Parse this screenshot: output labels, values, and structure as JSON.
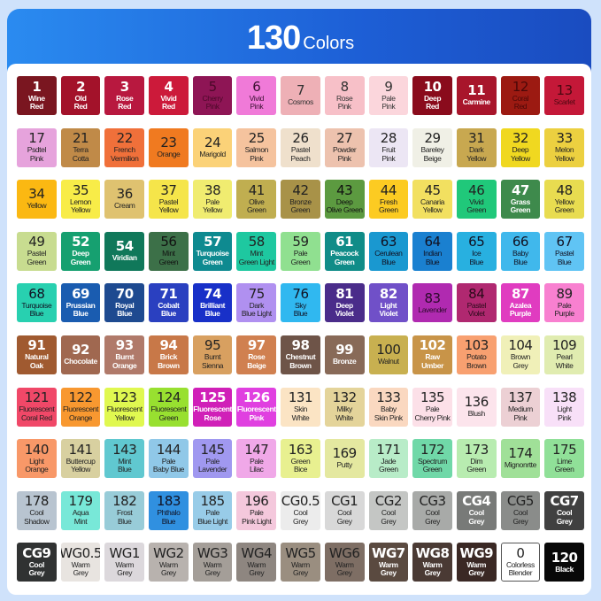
{
  "title": {
    "number": "130",
    "word": "Colors"
  },
  "swatches": [
    [
      "1",
      "Wine\nRed",
      "#7a1620",
      "#fff"
    ],
    [
      "2",
      "Old\nRed",
      "#a3122a",
      "#fff"
    ],
    [
      "3",
      "Rose\nRed",
      "#b8183f",
      "#fff"
    ],
    [
      "4",
      "Vivid\nRed",
      "#cc1a3a",
      "#fff"
    ],
    [
      "5",
      "Cherry\nPink",
      "#8e1555",
      "#4a0828"
    ],
    [
      "6",
      "Vivid\nPink",
      "#f07ad8",
      "#3a1030"
    ],
    [
      "7",
      "Cosmos",
      "#eeb0b6",
      "#333"
    ],
    [
      "8",
      "Rose\nPink",
      "#f7c0c8",
      "#333"
    ],
    [
      "9",
      "Pale\nPink",
      "#fbd6dc",
      "#333"
    ],
    [
      "10",
      "Deep\nRed",
      "#8a0b1c",
      "#fff"
    ],
    [
      "11",
      "Carmine",
      "#a8152b",
      "#fff"
    ],
    [
      "12",
      "Coral\nRed",
      "#9c1a12",
      "#4a0808"
    ],
    [
      "13",
      "Scarlet",
      "#c41838",
      "#4a0810"
    ],
    [
      "17",
      "Psdtel\nPink",
      "#e6a3dc",
      "#222"
    ],
    [
      "21",
      "Terra\nCotta",
      "#c08a48",
      "#222"
    ],
    [
      "22",
      "French\nVermilion",
      "#f0703a",
      "#222"
    ],
    [
      "23",
      "Orange",
      "#f07a20",
      "#222"
    ],
    [
      "24",
      "Marigold",
      "#fbd278",
      "#222"
    ],
    [
      "25",
      "Salmon\nPink",
      "#f5c39e",
      "#222"
    ],
    [
      "26",
      "Pastel\nPeach",
      "#efe0cc",
      "#222"
    ],
    [
      "27",
      "Powder\nPink",
      "#edc2ae",
      "#222"
    ],
    [
      "28",
      "Fruit\nPink",
      "#ece6f4",
      "#222"
    ],
    [
      "29",
      "Bareley\nBeige",
      "#f0f0e6",
      "#222"
    ],
    [
      "31",
      "Dark\nYellow",
      "#c8a850",
      "#222"
    ],
    [
      "32",
      "Deep\nYellow",
      "#f0d820",
      "#222"
    ],
    [
      "33",
      "Melon\nYellow",
      "#ecd040",
      "#222"
    ],
    [
      "34",
      "Yellow",
      "#fbb812",
      "#222"
    ],
    [
      "35",
      "Lemon\nYellow",
      "#f8ec48",
      "#222"
    ],
    [
      "36",
      "Cream",
      "#dfc270",
      "#222"
    ],
    [
      "37",
      "Pastel\nYellow",
      "#f5e54a",
      "#222"
    ],
    [
      "38",
      "Pale\nYellow",
      "#f0ec70",
      "#222"
    ],
    [
      "41",
      "Olive\nGreen",
      "#c0ae50",
      "#222"
    ],
    [
      "42",
      "Bronze\nGreen",
      "#a89248",
      "#222"
    ],
    [
      "43",
      "Deep\nOlive Green",
      "#5c9a40",
      "#111"
    ],
    [
      "44",
      "Fresh\nGreen",
      "#fccb22",
      "#222"
    ],
    [
      "45",
      "Canaria\nYellow",
      "#f2e060",
      "#222"
    ],
    [
      "46",
      "Vivid\nGreen",
      "#20c87a",
      "#222"
    ],
    [
      "47",
      "Grass\nGreen",
      "#3e8a4c",
      "#fff"
    ],
    [
      "48",
      "Yellow\nGreen",
      "#e8dc50",
      "#222"
    ],
    [
      "49",
      "Pastel\nGreen",
      "#c8dc90",
      "#222"
    ],
    [
      "52",
      "Deep\nGreen",
      "#16a070",
      "#fff"
    ],
    [
      "54",
      "Viridian",
      "#10785a",
      "#fff"
    ],
    [
      "56",
      "Mint\nGreen",
      "#3c7048",
      "#111"
    ],
    [
      "57",
      "Turquoise\nGreen",
      "#0e8a90",
      "#fff"
    ],
    [
      "58",
      "Mint\nGreen Light",
      "#1ec8a0",
      "#222"
    ],
    [
      "59",
      "Pale\nGreen",
      "#90e090",
      "#222"
    ],
    [
      "61",
      "Peacock\nGreen",
      "#108c88",
      "#fff"
    ],
    [
      "63",
      "Cerulean\nBlue",
      "#1a98d0",
      "#112"
    ],
    [
      "64",
      "Indian\nBlue",
      "#1a80d0",
      "#112"
    ],
    [
      "65",
      "Ice\nBlue",
      "#28b0e0",
      "#112"
    ],
    [
      "66",
      "Baby\nBlue",
      "#40b8ec",
      "#112"
    ],
    [
      "67",
      "Pastel\nBlue",
      "#60c4f4",
      "#112"
    ],
    [
      "68",
      "Turquoise\nBlue",
      "#28d0b0",
      "#112"
    ],
    [
      "69",
      "Prussian\nBlue",
      "#1a5cb0",
      "#fff"
    ],
    [
      "70",
      "Royal\nBlue",
      "#1e4a90",
      "#fff"
    ],
    [
      "71",
      "Cobalt\nBlue",
      "#2a40c0",
      "#fff"
    ],
    [
      "74",
      "Brilliant\nBlue",
      "#1830c8",
      "#fff"
    ],
    [
      "75",
      "Dark\nBlue Light",
      "#b090f0",
      "#222"
    ],
    [
      "76",
      "Sky\nBlue",
      "#30b8f0",
      "#112"
    ],
    [
      "81",
      "Deep\nViolet",
      "#4a2c8a",
      "#fff"
    ],
    [
      "82",
      "Light\nViolet",
      "#7050c8",
      "#fff"
    ],
    [
      "83",
      "Lavender",
      "#b02ab0",
      "#2a0a2a"
    ],
    [
      "84",
      "Pastel\nViolet",
      "#b02870",
      "#2a0a1a"
    ],
    [
      "87",
      "Azalea\nPurple",
      "#e03cc0",
      "#fff"
    ],
    [
      "89",
      "Pale\nPurple",
      "#f880d0",
      "#222"
    ],
    [
      "91",
      "Natural\nOak",
      "#a05a30",
      "#fff"
    ],
    [
      "92",
      "Chocolate",
      "#a06850",
      "#fff"
    ],
    [
      "93",
      "Burnt\nOrange",
      "#b07a6a",
      "#fff"
    ],
    [
      "94",
      "Brick\nBrown",
      "#c87848",
      "#fff"
    ],
    [
      "95",
      "Burnt\nSienna",
      "#d8a060",
      "#222"
    ],
    [
      "97",
      "Rose\nBeige",
      "#d08050",
      "#fff"
    ],
    [
      "98",
      "Chestnut\nBrown",
      "#6e5448",
      "#fff"
    ],
    [
      "99",
      "Bronze",
      "#886a58",
      "#fff"
    ],
    [
      "100",
      "Walnut",
      "#c8b050",
      "#222"
    ],
    [
      "102",
      "Raw\nUmber",
      "#c89448",
      "#fff"
    ],
    [
      "103",
      "Potato\nBrown",
      "#f8a070",
      "#222"
    ],
    [
      "104",
      "Brown\nGrey",
      "#f0f0b8",
      "#222"
    ],
    [
      "109",
      "Pearl\nWhite",
      "#e0ecb0",
      "#222"
    ],
    [
      "121",
      "Fluorescent\nCoral Red",
      "#f04868",
      "#222"
    ],
    [
      "122",
      "Fluorescent\nOrange",
      "#f89830",
      "#222"
    ],
    [
      "123",
      "Fluorescent\nYellow",
      "#e0f850",
      "#222"
    ],
    [
      "124",
      "Fluorescent\nGreen",
      "#98e030",
      "#222"
    ],
    [
      "125",
      "Fluorescent\nRose",
      "#d020b8",
      "#fff"
    ],
    [
      "126",
      "Fluorescent\nPink",
      "#e040e0",
      "#fff"
    ],
    [
      "131",
      "Skin\nWhite",
      "#fbe4c4",
      "#222"
    ],
    [
      "132",
      "Milky\nWhite",
      "#e4d49a",
      "#222"
    ],
    [
      "133",
      "Baby\nSkin Pink",
      "#fad8c0",
      "#222"
    ],
    [
      "135",
      "Pale\nCherry Pink",
      "#fce0e8",
      "#222"
    ],
    [
      "136",
      "Blush",
      "#fce4ec",
      "#222"
    ],
    [
      "137",
      "Medium\nPink",
      "#ecd0d4",
      "#222"
    ],
    [
      "138",
      "Light\nPink",
      "#f8e0f8",
      "#222"
    ],
    [
      "140",
      "Light\nOrange",
      "#f89868",
      "#222"
    ],
    [
      "141",
      "Buttercup\nYellow",
      "#d8d0a0",
      "#222"
    ],
    [
      "143",
      "Mint\nBlue",
      "#60c8d0",
      "#222"
    ],
    [
      "144",
      "Pale\nBaby Blue",
      "#90c8e8",
      "#222"
    ],
    [
      "145",
      "Pale\nLavender",
      "#a098f0",
      "#222"
    ],
    [
      "147",
      "Pale\nLilac",
      "#f0a8e8",
      "#222"
    ],
    [
      "163",
      "Green\nBice",
      "#e8f090",
      "#222"
    ],
    [
      "169",
      "Putty",
      "#e4e8a0",
      "#222"
    ],
    [
      "171",
      "Jade\nGreen",
      "#b8ecc8",
      "#222"
    ],
    [
      "172",
      "Spectrum\nGreen",
      "#70d8a8",
      "#222"
    ],
    [
      "173",
      "Dim\nGreen",
      "#b8ecb0",
      "#222"
    ],
    [
      "174",
      "Mignonrtte",
      "#a0e098",
      "#222"
    ],
    [
      "175",
      "Lime\nGreen",
      "#90e098",
      "#222"
    ],
    [
      "178",
      "Cool\nShadow",
      "#b8c4d0",
      "#222"
    ],
    [
      "179",
      "Aqua\nMint",
      "#78e8d8",
      "#222"
    ],
    [
      "182",
      "Frost\nBlue",
      "#98ccd8",
      "#222"
    ],
    [
      "183",
      "Phthalo\nBlue",
      "#3090e0",
      "#112"
    ],
    [
      "185",
      "Pale\nBlue Light",
      "#98cce8",
      "#222"
    ],
    [
      "196",
      "Pale\nPink Light",
      "#f4c8dc",
      "#222"
    ],
    [
      "CG0.5",
      "Cool\nGrey",
      "#ececec",
      "#222"
    ],
    [
      "CG1",
      "Cool\nGrey",
      "#d8d8d8",
      "#222"
    ],
    [
      "CG2",
      "Cool\nGrey",
      "#c4c6c4",
      "#222"
    ],
    [
      "CG3",
      "Cool\nGrey",
      "#a8aaa8",
      "#222"
    ],
    [
      "CG4",
      "Cool\nGrey",
      "#787a78",
      "#fff"
    ],
    [
      "CG5",
      "Cool\nGrey",
      "#8a8c8a",
      "#222"
    ],
    [
      "CG7",
      "Cool\nGrey",
      "#404040",
      "#fff"
    ],
    [
      "CG9",
      "Cool\nGrey",
      "#303232",
      "#fff"
    ],
    [
      "WG0.5",
      "Warm\nGrey",
      "#e8e4e0",
      "#222"
    ],
    [
      "WG1",
      "Warm\nGrey",
      "#dcd8dc",
      "#222"
    ],
    [
      "WG2",
      "Warm\nGrey",
      "#b8b2ae",
      "#222"
    ],
    [
      "WG3",
      "Warm\nGrey",
      "#a49e98",
      "#222"
    ],
    [
      "WG4",
      "Warm\nGrey",
      "#8e8680",
      "#222"
    ],
    [
      "WG5",
      "Warm\nGrey",
      "#9a8e80",
      "#222"
    ],
    [
      "WG6",
      "Warm\nGrey",
      "#7e6e64",
      "#222"
    ],
    [
      "WG7",
      "Warm\nGrey",
      "#5a4a40",
      "#fff"
    ],
    [
      "WG8",
      "Warm\nGrey",
      "#4a3a34",
      "#fff"
    ],
    [
      "WG9",
      "Warm\nGrey",
      "#3a2824",
      "#fff"
    ],
    [
      "0",
      "Colorless\nBlender",
      "#ffffff",
      "#222"
    ],
    [
      "120",
      "Black",
      "#080808",
      "#fff"
    ]
  ]
}
